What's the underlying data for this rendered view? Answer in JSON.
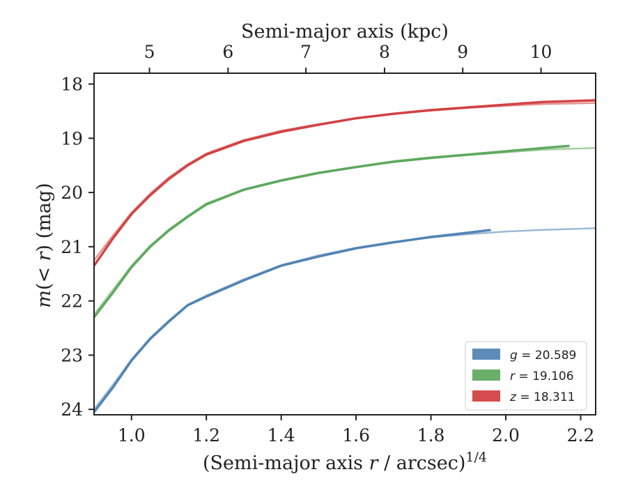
{
  "chart_data": {
    "type": "line",
    "xlabel_parts": [
      "(Semi-major axis ",
      "r",
      " / arcsec)",
      "1/4"
    ],
    "ylabel_parts": [
      "m",
      "(< ",
      "r",
      ") (mag)"
    ],
    "top_xlabel": "Semi-major axis (kpc)",
    "xlim": [
      0.9,
      2.24
    ],
    "ylim": [
      24.1,
      17.8
    ],
    "y_inverted": true,
    "xticks": [
      1.0,
      1.2,
      1.4,
      1.6,
      1.8,
      2.0,
      2.2
    ],
    "xtick_labels": [
      "1.0",
      "1.2",
      "1.4",
      "1.6",
      "1.8",
      "2.0",
      "2.2"
    ],
    "yticks": [
      18,
      19,
      20,
      21,
      22,
      23,
      24
    ],
    "ytick_labels": [
      "18",
      "19",
      "20",
      "21",
      "22",
      "23",
      "24"
    ],
    "top_xticks_kpc": [
      5,
      6,
      7,
      8,
      9,
      10
    ],
    "top_xtick_labels": [
      "5",
      "6",
      "7",
      "8",
      "9",
      "10"
    ],
    "top_axis_x_at_tick": [
      1.048,
      1.258,
      1.466,
      1.676,
      1.885,
      2.094
    ],
    "legend_position": "lower-right",
    "grid": false,
    "series": [
      {
        "name": "g = 20.589",
        "legend_var": "g",
        "legend_value": "20.589",
        "color": "#4c7fb0",
        "x": [
          0.9,
          0.95,
          1.0,
          1.05,
          1.1,
          1.15,
          1.2,
          1.3,
          1.4,
          1.5,
          1.6,
          1.7,
          1.8,
          1.9,
          1.96
        ],
        "y": [
          24.05,
          23.6,
          23.1,
          22.7,
          22.38,
          22.08,
          21.92,
          21.62,
          21.35,
          21.18,
          21.03,
          20.92,
          20.82,
          20.74,
          20.69
        ],
        "model_x": [
          0.9,
          0.95,
          1.0,
          1.05,
          1.1,
          1.15,
          1.2,
          1.3,
          1.4,
          1.5,
          1.6,
          1.7,
          1.8,
          1.9,
          2.0,
          2.1,
          2.24
        ],
        "model_y": [
          24.0,
          23.55,
          23.08,
          22.68,
          22.36,
          22.07,
          21.9,
          21.6,
          21.34,
          21.16,
          21.02,
          20.91,
          20.83,
          20.77,
          20.72,
          20.69,
          20.66
        ]
      },
      {
        "name": "r = 19.106",
        "legend_var": "r",
        "legend_value": "19.106",
        "color": "#59a559",
        "x": [
          0.9,
          0.95,
          1.0,
          1.05,
          1.1,
          1.15,
          1.2,
          1.3,
          1.4,
          1.5,
          1.6,
          1.7,
          1.8,
          1.9,
          2.0,
          2.1,
          2.17
        ],
        "y": [
          22.3,
          21.85,
          21.38,
          21.0,
          20.7,
          20.45,
          20.22,
          19.95,
          19.78,
          19.64,
          19.53,
          19.43,
          19.36,
          19.3,
          19.24,
          19.18,
          19.14
        ],
        "model_x": [
          0.9,
          0.95,
          1.0,
          1.05,
          1.1,
          1.15,
          1.2,
          1.3,
          1.4,
          1.5,
          1.6,
          1.7,
          1.8,
          1.9,
          2.0,
          2.1,
          2.24
        ],
        "model_y": [
          22.25,
          21.8,
          21.35,
          20.98,
          20.68,
          20.43,
          20.2,
          19.94,
          19.77,
          19.63,
          19.53,
          19.44,
          19.37,
          19.31,
          19.26,
          19.21,
          19.18
        ]
      },
      {
        "name": "z = 18.311",
        "legend_var": "z",
        "legend_value": "18.311",
        "color": "#d03b3b",
        "x": [
          0.9,
          0.95,
          1.0,
          1.05,
          1.1,
          1.15,
          1.2,
          1.3,
          1.4,
          1.5,
          1.6,
          1.7,
          1.8,
          1.9,
          2.0,
          2.1,
          2.24
        ],
        "y": [
          21.35,
          20.85,
          20.4,
          20.05,
          19.75,
          19.5,
          19.3,
          19.05,
          18.88,
          18.75,
          18.63,
          18.55,
          18.48,
          18.43,
          18.38,
          18.33,
          18.3
        ],
        "model_x": [
          0.9,
          0.95,
          1.0,
          1.05,
          1.1,
          1.15,
          1.2,
          1.3,
          1.4,
          1.5,
          1.6,
          1.7,
          1.8,
          1.9,
          2.0,
          2.1,
          2.24
        ],
        "model_y": [
          21.25,
          20.8,
          20.37,
          20.02,
          19.72,
          19.48,
          19.28,
          19.03,
          18.86,
          18.74,
          18.63,
          18.55,
          18.49,
          18.44,
          18.4,
          18.37,
          18.35
        ]
      }
    ]
  }
}
